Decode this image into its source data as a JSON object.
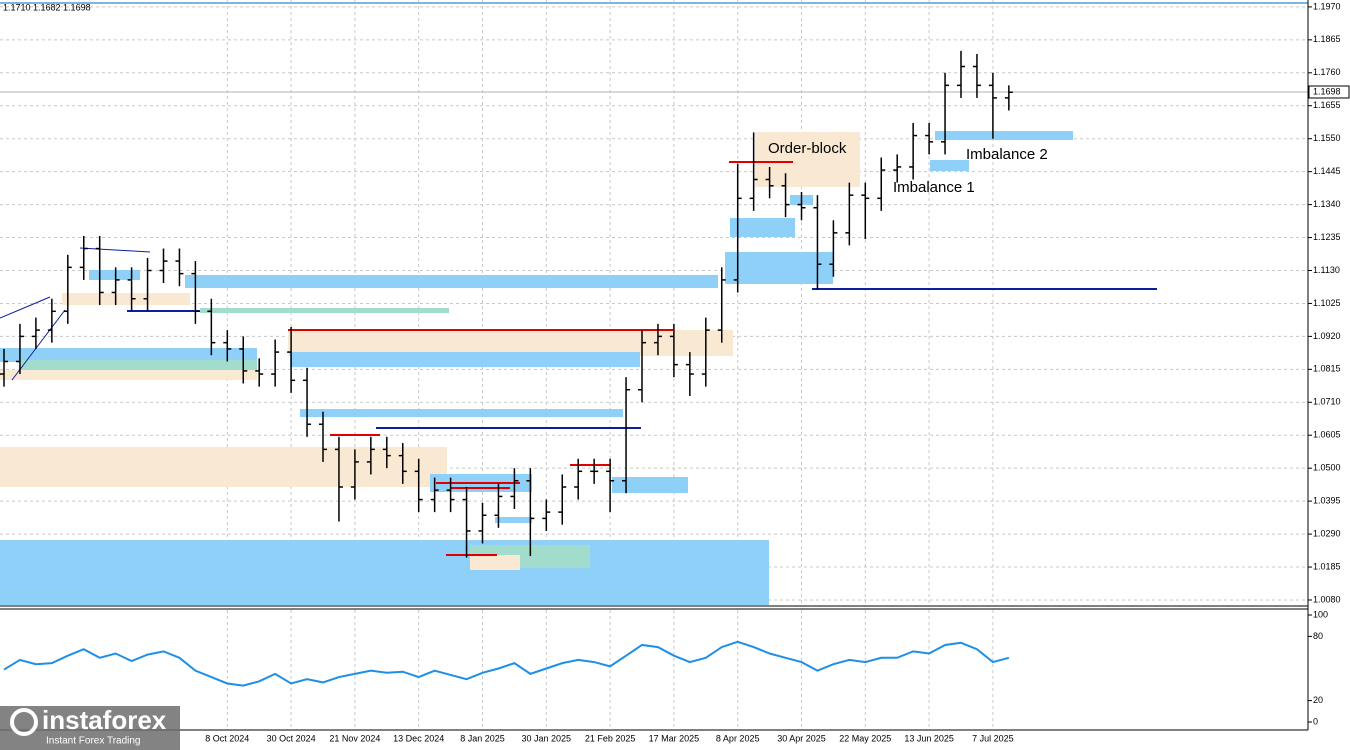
{
  "chart_data": [
    {
      "type": "ohlc",
      "header": "1.1710 1.1682 1.1698",
      "price_tag": "1.1698",
      "annotations": [
        "Order-block",
        "Imbalance 1",
        "Imbalance 2"
      ],
      "watermark": {
        "brand": "instaforex",
        "tagline": "Instant Forex Trading"
      },
      "color": "#000000",
      "categories": [
        null,
        null,
        null,
        null,
        null,
        null,
        null,
        null,
        null,
        null,
        null,
        null,
        null,
        null,
        "8 Oct 2024",
        null,
        null,
        null,
        "30 Oct 2024",
        null,
        null,
        null,
        "21 Nov 2024",
        null,
        null,
        null,
        "13 Dec 2024",
        null,
        null,
        null,
        "8 Jan 2025",
        null,
        null,
        null,
        "30 Jan 2025",
        null,
        null,
        null,
        "21 Feb 2025",
        null,
        null,
        null,
        "17 Mar 2025",
        null,
        null,
        null,
        "8 Apr 2025",
        null,
        null,
        null,
        "30 Apr 2025",
        null,
        null,
        null,
        "22 May 2025",
        null,
        null,
        null,
        "13 Jun 2025",
        null,
        null,
        null,
        "7 Jul 2025",
        null
      ],
      "open": [
        1.08,
        1.084,
        1.092,
        1.094,
        1.1,
        1.114,
        1.12,
        1.106,
        1.11,
        1.104,
        1.113,
        1.116,
        1.112,
        1.1,
        1.09,
        1.088,
        1.081,
        1.08,
        1.087,
        1.078,
        1.064,
        1.056,
        1.044,
        1.052,
        1.056,
        1.054,
        1.049,
        1.04,
        1.043,
        1.04,
        1.03,
        1.035,
        1.041,
        1.046,
        1.034,
        1.036,
        1.044,
        1.049,
        1.049,
        1.046,
        1.075,
        1.09,
        1.092,
        1.083,
        1.08,
        1.094,
        1.11,
        1.136,
        1.142,
        1.14,
        1.134,
        1.133,
        1.115,
        1.125,
        1.137,
        1.136,
        1.145,
        1.146,
        1.156,
        1.154,
        1.172,
        1.178,
        1.172,
        1.168
      ],
      "high": [
        1.088,
        1.096,
        1.098,
        1.104,
        1.118,
        1.124,
        1.124,
        1.114,
        1.114,
        1.117,
        1.12,
        1.12,
        1.116,
        1.104,
        1.094,
        1.092,
        1.085,
        1.091,
        1.095,
        1.082,
        1.068,
        1.06,
        1.056,
        1.06,
        1.06,
        1.058,
        1.053,
        1.047,
        1.047,
        1.044,
        1.039,
        1.045,
        1.05,
        1.05,
        1.04,
        1.048,
        1.053,
        1.053,
        1.053,
        1.079,
        1.094,
        1.096,
        1.096,
        1.087,
        1.098,
        1.114,
        1.147,
        1.157,
        1.146,
        1.144,
        1.138,
        1.137,
        1.129,
        1.141,
        1.141,
        1.149,
        1.15,
        1.16,
        1.16,
        1.176,
        1.183,
        1.182,
        1.176,
        1.172
      ],
      "low": [
        1.076,
        1.08,
        1.088,
        1.09,
        1.096,
        1.11,
        1.102,
        1.102,
        1.1,
        1.1,
        1.109,
        1.108,
        1.096,
        1.086,
        1.084,
        1.077,
        1.076,
        1.076,
        1.074,
        1.06,
        1.052,
        1.033,
        1.04,
        1.048,
        1.05,
        1.045,
        1.036,
        1.036,
        1.036,
        1.0215,
        1.026,
        1.031,
        1.037,
        1.022,
        1.03,
        1.032,
        1.04,
        1.045,
        1.036,
        1.042,
        1.071,
        1.086,
        1.079,
        1.073,
        1.076,
        1.09,
        1.106,
        1.132,
        1.136,
        1.13,
        1.129,
        1.107,
        1.111,
        1.121,
        1.123,
        1.132,
        1.141,
        1.142,
        1.15,
        1.15,
        1.168,
        1.168,
        1.155,
        1.164
      ],
      "close": [
        1.084,
        1.092,
        1.094,
        1.1,
        1.114,
        1.12,
        1.106,
        1.11,
        1.104,
        1.113,
        1.116,
        1.112,
        1.1,
        1.09,
        1.088,
        1.081,
        1.08,
        1.087,
        1.078,
        1.064,
        1.056,
        1.044,
        1.052,
        1.056,
        1.054,
        1.049,
        1.04,
        1.043,
        1.04,
        1.03,
        1.035,
        1.041,
        1.046,
        1.034,
        1.036,
        1.044,
        1.049,
        1.049,
        1.046,
        1.075,
        1.09,
        1.092,
        1.083,
        1.08,
        1.094,
        1.11,
        1.136,
        1.142,
        1.14,
        1.134,
        1.133,
        1.115,
        1.125,
        1.137,
        1.136,
        1.145,
        1.146,
        1.156,
        1.154,
        1.172,
        1.178,
        1.172,
        1.168,
        1.1698
      ],
      "ylim": [
        1.0064,
        1.1992
      ],
      "yticks": [
        {
          "value": 1.008,
          "label": "1.0080"
        },
        {
          "value": 1.0185,
          "label": "1.0185"
        },
        {
          "value": 1.029,
          "label": "1.0290"
        },
        {
          "value": 1.0395,
          "label": "1.0395"
        },
        {
          "value": 1.05,
          "label": "1.0500"
        },
        {
          "value": 1.0605,
          "label": "1.0605"
        },
        {
          "value": 1.071,
          "label": "1.0710"
        },
        {
          "value": 1.0815,
          "label": "1.0815"
        },
        {
          "value": 1.092,
          "label": "1.0920"
        },
        {
          "value": 1.1025,
          "label": "1.1025"
        },
        {
          "value": 1.113,
          "label": "1.1130"
        },
        {
          "value": 1.1235,
          "label": "1.1235"
        },
        {
          "value": 1.134,
          "label": "1.1340"
        },
        {
          "value": 1.1445,
          "label": "1.1445"
        },
        {
          "value": 1.155,
          "label": "1.1550"
        },
        {
          "value": 1.1655,
          "label": "1.1655"
        },
        {
          "value": 1.176,
          "label": "1.1760"
        },
        {
          "value": 1.1865,
          "label": "1.1865"
        },
        {
          "value": 1.197,
          "label": "1.1970"
        }
      ],
      "grid": true
    },
    {
      "type": "line",
      "color": "#1e8fe6",
      "values": [
        49,
        58,
        54,
        55,
        62,
        68,
        60,
        64,
        57,
        63,
        66,
        60,
        48,
        42,
        36,
        34,
        38,
        45,
        36,
        40,
        37,
        42,
        45,
        48,
        46,
        47,
        42,
        48,
        44,
        40,
        46,
        50,
        55,
        45,
        50,
        55,
        58,
        56,
        52,
        62,
        72,
        70,
        62,
        56,
        60,
        70,
        75,
        70,
        64,
        60,
        56,
        48,
        54,
        58,
        56,
        60,
        60,
        66,
        64,
        72,
        74,
        68,
        56,
        60
      ],
      "ylim": [
        0,
        100
      ],
      "yticks": [
        0,
        20,
        80,
        100
      ]
    }
  ]
}
